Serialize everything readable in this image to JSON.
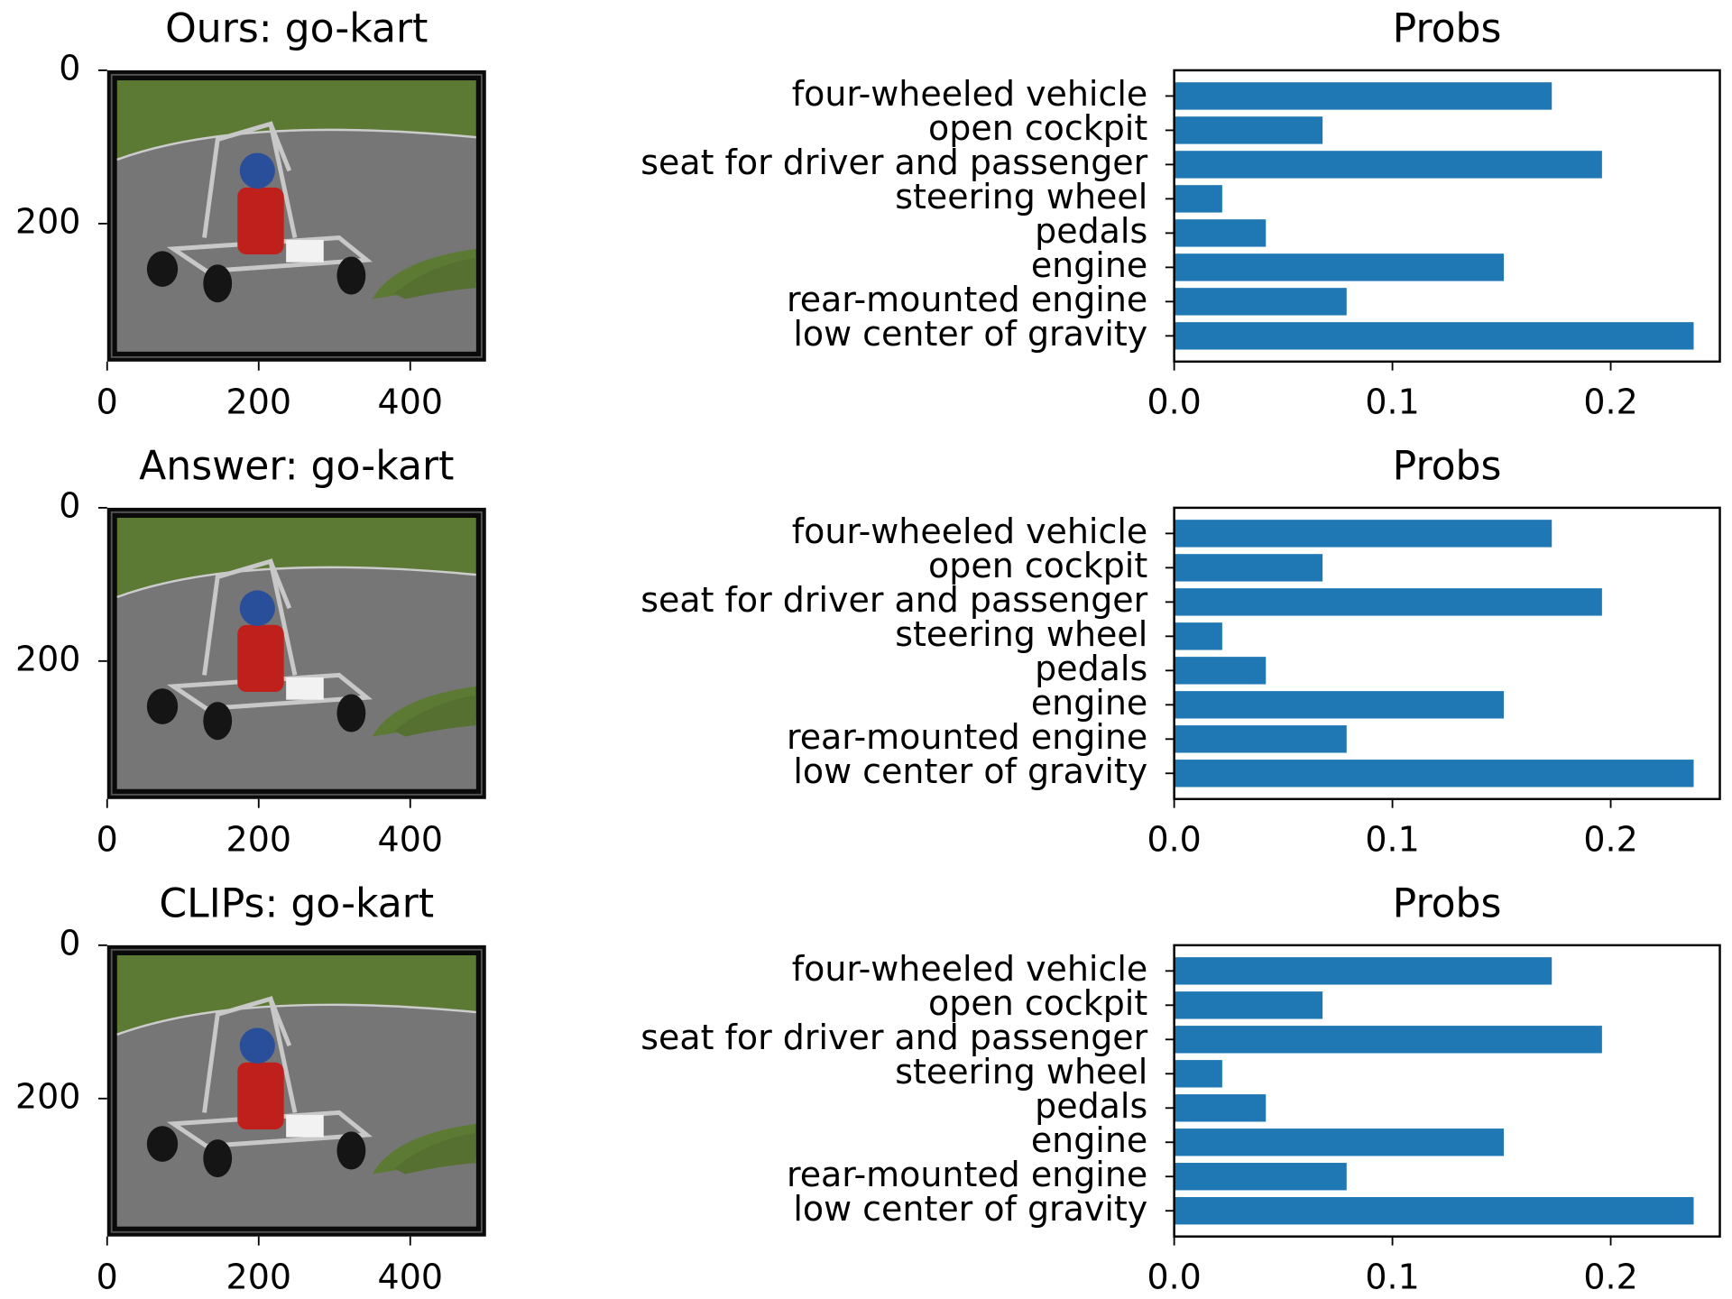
{
  "chart_data": [
    {
      "type": "image",
      "title": "Ours: go-kart",
      "xlim": [
        0,
        500
      ],
      "ylim": [
        380,
        0
      ],
      "xticks": [
        0,
        200,
        400
      ],
      "yticks": [
        0,
        200
      ]
    },
    {
      "type": "barh",
      "title": "Probs",
      "color": "#1f77b4",
      "categories": [
        "four-wheeled vehicle",
        "open cockpit",
        "seat for driver and passenger",
        "steering wheel",
        "pedals",
        "engine",
        "rear-mounted engine",
        "low center of gravity"
      ],
      "values": [
        0.173,
        0.068,
        0.196,
        0.022,
        0.042,
        0.151,
        0.079,
        0.238
      ],
      "xlim": [
        0,
        0.25
      ],
      "xticks": [
        {
          "value": 0,
          "label": "0.0"
        },
        0.1,
        0.2
      ]
    },
    {
      "type": "image",
      "title": "Answer: go-kart",
      "xlim": [
        0,
        500
      ],
      "ylim": [
        380,
        0
      ],
      "xticks": [
        0,
        200,
        400
      ],
      "yticks": [
        0,
        200
      ]
    },
    {
      "type": "barh",
      "title": "Probs",
      "color": "#1f77b4",
      "categories": [
        "four-wheeled vehicle",
        "open cockpit",
        "seat for driver and passenger",
        "steering wheel",
        "pedals",
        "engine",
        "rear-mounted engine",
        "low center of gravity"
      ],
      "values": [
        0.173,
        0.068,
        0.196,
        0.022,
        0.042,
        0.151,
        0.079,
        0.238
      ],
      "xlim": [
        0,
        0.25
      ],
      "xticks": [
        {
          "value": 0,
          "label": "0.0"
        },
        0.1,
        0.2
      ]
    },
    {
      "type": "image",
      "title": "CLIPs: go-kart",
      "xlim": [
        0,
        500
      ],
      "ylim": [
        380,
        0
      ],
      "xticks": [
        0,
        200,
        400
      ],
      "yticks": [
        0,
        200
      ]
    },
    {
      "type": "barh",
      "title": "Probs",
      "color": "#1f77b4",
      "categories": [
        "four-wheeled vehicle",
        "open cockpit",
        "seat for driver and passenger",
        "steering wheel",
        "pedals",
        "engine",
        "rear-mounted engine",
        "low center of gravity"
      ],
      "values": [
        0.173,
        0.068,
        0.196,
        0.022,
        0.042,
        0.151,
        0.079,
        0.238
      ],
      "xlim": [
        0,
        0.25
      ],
      "xticks": [
        {
          "value": 0,
          "label": "0.0"
        },
        0.1,
        0.2
      ]
    }
  ]
}
